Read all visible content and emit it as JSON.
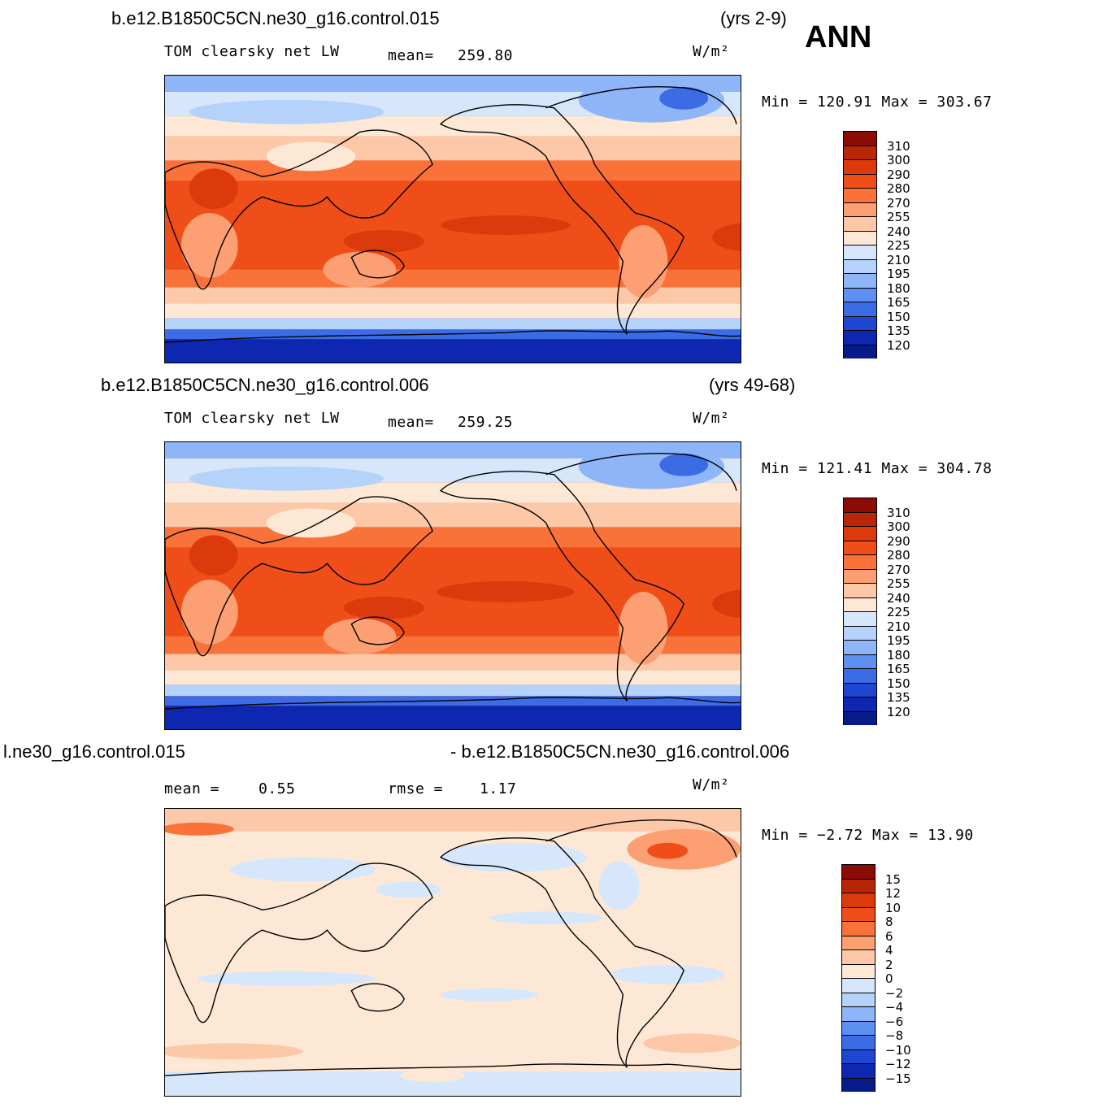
{
  "season": "ANN",
  "panels": [
    {
      "case": "b.e12.B1850C5CN.ne30_g16.control.015",
      "years": "(yrs 2-9)",
      "variable": "TOM clearsky net LW",
      "mean_label": "mean=",
      "mean_value": "259.80",
      "units": "W/m²",
      "minmax": "Min = 120.91 Max = 303.67",
      "colorbar": {
        "labels": [
          "310",
          "300",
          "290",
          "280",
          "270",
          "255",
          "240",
          "225",
          "210",
          "195",
          "180",
          "165",
          "150",
          "135",
          "120"
        ],
        "colors": [
          "#8b0b07",
          "#b82606",
          "#dc3a0c",
          "#f04e18",
          "#f9723a",
          "#fc9f73",
          "#fdc8a7",
          "#fde8d6",
          "#d6e7fb",
          "#b5d2fa",
          "#8db5f7",
          "#5e8ff2",
          "#3b6ce6",
          "#1e46d2",
          "#0d27b0",
          "#061a88"
        ]
      }
    },
    {
      "case": "b.e12.B1850C5CN.ne30_g16.control.006",
      "years": "(yrs 49-68)",
      "variable": "TOM clearsky net LW",
      "mean_label": "mean=",
      "mean_value": "259.25",
      "units": "W/m²",
      "minmax": "Min = 121.41 Max = 304.78",
      "colorbar": {
        "labels": [
          "310",
          "300",
          "290",
          "280",
          "270",
          "255",
          "240",
          "225",
          "210",
          "195",
          "180",
          "165",
          "150",
          "135",
          "120"
        ],
        "colors": [
          "#8b0b07",
          "#b82606",
          "#dc3a0c",
          "#f04e18",
          "#f9723a",
          "#fc9f73",
          "#fdc8a7",
          "#fde8d6",
          "#d6e7fb",
          "#b5d2fa",
          "#8db5f7",
          "#5e8ff2",
          "#3b6ce6",
          "#1e46d2",
          "#0d27b0",
          "#061a88"
        ]
      }
    },
    {
      "case_left": "l.ne30_g16.control.015",
      "case_right": "- b.e12.B1850C5CN.ne30_g16.control.006",
      "mean_label": "mean =",
      "mean_value": "0.55",
      "rmse_label": "rmse =",
      "rmse_value": "1.17",
      "units": "W/m²",
      "minmax": "Min =  −2.72 Max =  13.90",
      "colorbar": {
        "labels": [
          "15",
          "12",
          "10",
          "8",
          "6",
          "4",
          "2",
          "0",
          "−2",
          "−4",
          "−6",
          "−8",
          "−10",
          "−12",
          "−15"
        ],
        "colors": [
          "#8b0b07",
          "#b82606",
          "#dc3a0c",
          "#f04e18",
          "#f9723a",
          "#fc9f73",
          "#fdc8a7",
          "#fde8d6",
          "#d6e7fb",
          "#b5d2fa",
          "#8db5f7",
          "#5e8ff2",
          "#3b6ce6",
          "#1e46d2",
          "#0d27b0",
          "#061a88"
        ]
      }
    }
  ]
}
